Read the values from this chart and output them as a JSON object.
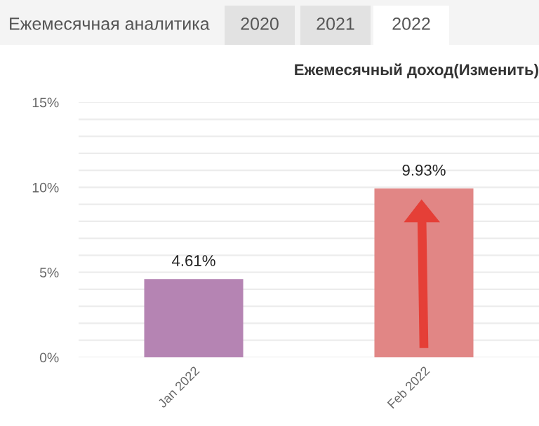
{
  "chart_data": {
    "type": "bar",
    "title": "Ежемесячный доход(Изменить)",
    "annotations": [
      "Ежемесячная аналитика",
      "2020",
      "2021",
      "2022"
    ],
    "categories": [
      "Jan 2022",
      "Feb 2022"
    ],
    "values": [
      4.61,
      9.93
    ],
    "colors": [
      "#b584b3",
      "#e18685"
    ],
    "value_labels": [
      "4.61%",
      "9.93%"
    ],
    "ylim": [
      0,
      15
    ],
    "yticks": [
      {
        "value": 0,
        "label": "0%"
      },
      {
        "value": 1,
        "label": null
      },
      {
        "value": 2,
        "label": null
      },
      {
        "value": 3,
        "label": null
      },
      {
        "value": 4,
        "label": null
      },
      {
        "value": 5,
        "label": "5%"
      },
      {
        "value": 6,
        "label": null
      },
      {
        "value": 7,
        "label": null
      },
      {
        "value": 8,
        "label": null
      },
      {
        "value": 9,
        "label": null
      },
      {
        "value": 10,
        "label": "10%"
      },
      {
        "value": 11,
        "label": null
      },
      {
        "value": 12,
        "label": null
      },
      {
        "value": 13,
        "label": null
      },
      {
        "value": 14,
        "label": null
      },
      {
        "value": 15,
        "label": "15%"
      }
    ],
    "grid": "y"
  }
}
